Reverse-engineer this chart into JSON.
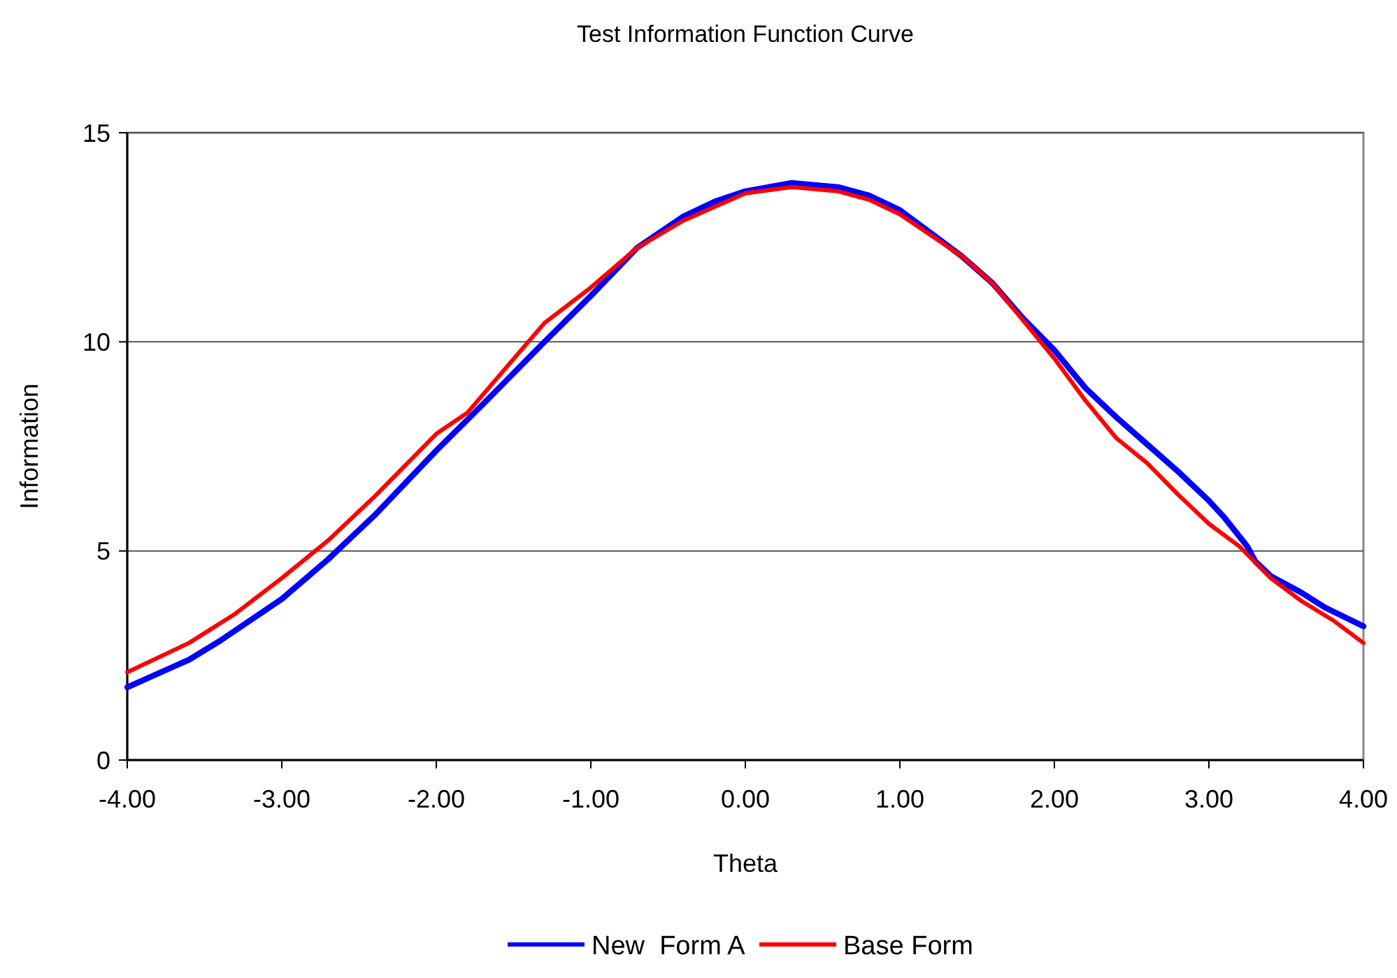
{
  "chart_data": {
    "type": "line",
    "title": "Test Information Function Curve",
    "xlabel": "Theta",
    "ylabel": "Information",
    "xlim": [
      -4,
      4
    ],
    "ylim": [
      0,
      15
    ],
    "xticks": [
      {
        "value": -4,
        "label": "-4.00"
      },
      {
        "value": -3,
        "label": "-3.00"
      },
      {
        "value": -2,
        "label": "-2.00"
      },
      {
        "value": -1,
        "label": "-1.00"
      },
      {
        "value": 0,
        "label": "0.00"
      },
      {
        "value": 1,
        "label": "1.00"
      },
      {
        "value": 2,
        "label": "2.00"
      },
      {
        "value": 3,
        "label": "3.00"
      },
      {
        "value": 4,
        "label": "4.00"
      }
    ],
    "yticks": [
      0,
      5,
      10,
      15
    ],
    "grid": "y",
    "legend": "bottom",
    "marker": "none",
    "line_style": "solid",
    "series": [
      {
        "name": "New  Form A",
        "color": "#0000ff",
        "x": [
          -4,
          -3.6,
          -3.4,
          -3,
          -2.7,
          -2.4,
          -2,
          -1.7,
          -1.3,
          -1,
          -0.7,
          -0.4,
          -0.2,
          0,
          0.3,
          0.6,
          0.8,
          1,
          1.2,
          1.4,
          1.6,
          1.8,
          2,
          2.2,
          2.4,
          2.6,
          2.8,
          3,
          3.1,
          3.25,
          3.3,
          3.4,
          3.6,
          3.75,
          4
        ],
        "values": [
          1.74,
          2.4,
          2.85,
          3.85,
          4.8,
          5.85,
          7.4,
          8.5,
          10,
          11.1,
          12.25,
          13,
          13.35,
          13.6,
          13.8,
          13.7,
          13.5,
          13.15,
          12.6,
          12.05,
          11.4,
          10.55,
          9.8,
          8.9,
          8.2,
          7.55,
          6.9,
          6.2,
          5.8,
          5.1,
          4.75,
          4.4,
          4,
          3.65,
          3.2
        ]
      },
      {
        "name": "Base Form",
        "color": "#ff0000",
        "x": [
          -4,
          -3.6,
          -3.3,
          -3,
          -2.7,
          -2.4,
          -2,
          -1.8,
          -1.3,
          -1,
          -0.7,
          -0.4,
          0,
          0.3,
          0.6,
          0.8,
          1,
          1.4,
          1.6,
          1.8,
          2,
          2.2,
          2.4,
          2.6,
          2.8,
          3,
          3.2,
          3.4,
          3.6,
          3.8,
          4
        ],
        "values": [
          2.1,
          2.8,
          3.5,
          4.35,
          5.25,
          6.3,
          7.8,
          8.3,
          10.45,
          11.3,
          12.25,
          12.9,
          13.55,
          13.7,
          13.6,
          13.4,
          13.05,
          12.05,
          11.4,
          10.5,
          9.6,
          8.6,
          7.7,
          7.1,
          6.35,
          5.65,
          5.1,
          4.35,
          3.8,
          3.35,
          2.8
        ]
      }
    ]
  }
}
